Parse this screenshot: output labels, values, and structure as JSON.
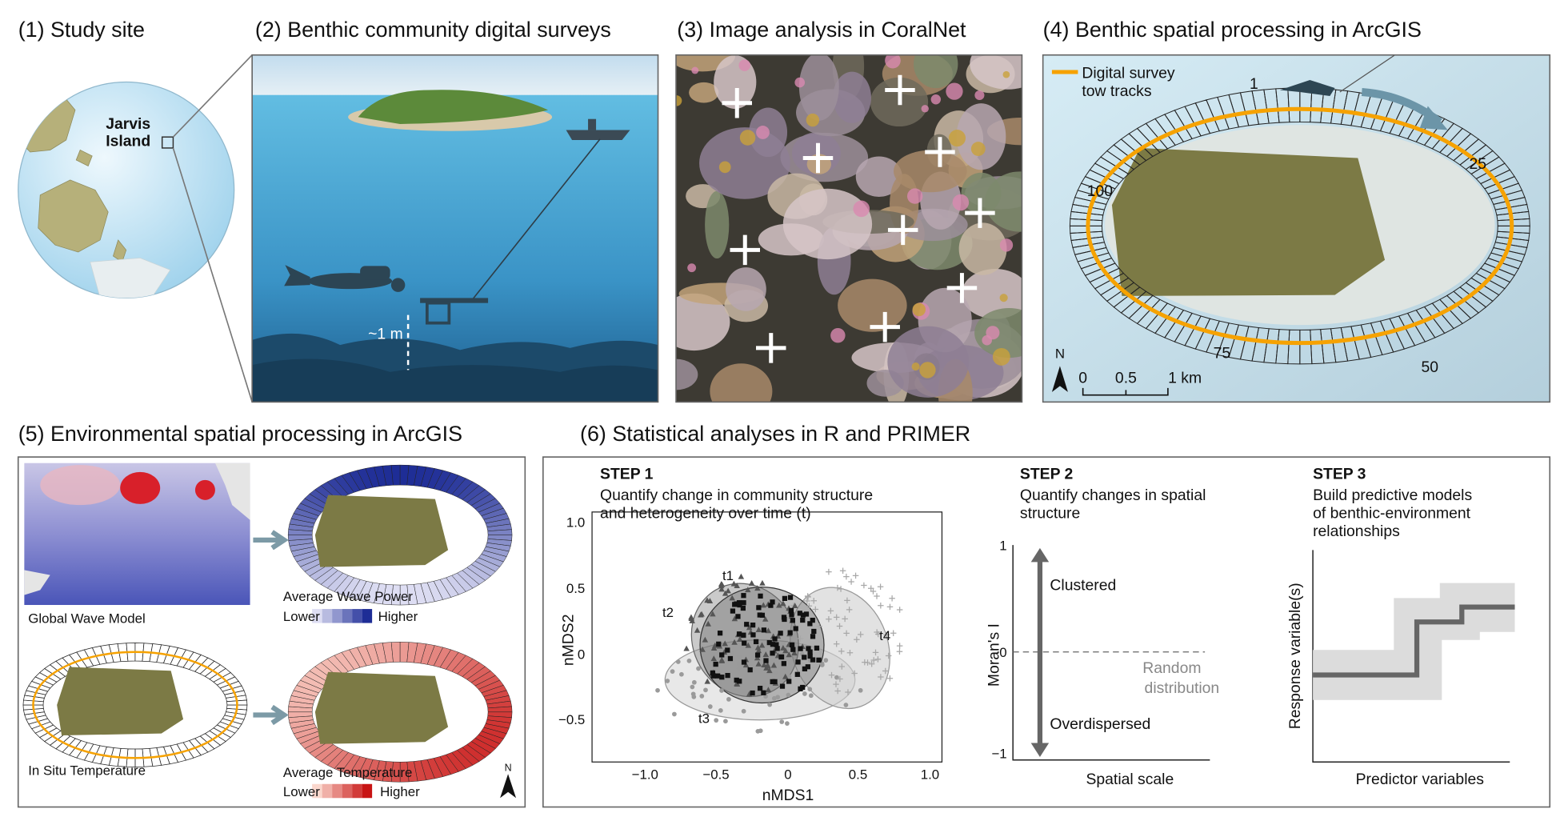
{
  "panel1": {
    "title": "(1) Study site",
    "label": [
      "Jarvis",
      "Island"
    ]
  },
  "panel2": {
    "title": "(2) Benthic community digital surveys",
    "depth_label": "~1 m"
  },
  "panel3": {
    "title": "(3) Image analysis in CoralNet"
  },
  "panel4": {
    "title": "(4) Benthic spatial processing in ArcGIS",
    "legend": [
      "Digital survey",
      "tow tracks"
    ],
    "segment_labels": [
      "1",
      "25",
      "50",
      "75",
      "100"
    ],
    "north": "N",
    "scale_labels": [
      "0",
      "0.5",
      "1 km"
    ]
  },
  "panel5": {
    "title": "(5) Environmental spatial processing in ArcGIS",
    "wave_model": "Global Wave Model",
    "wave_power": {
      "title": "Average Wave Power",
      "low": "Lower",
      "high": "Higher"
    },
    "in_situ": "In Situ Temperature",
    "temperature": {
      "title": "Average Temperature",
      "low": "Lower",
      "high": "Higher"
    },
    "north": "N"
  },
  "panel6": {
    "title": "(6) Statistical analyses in R and PRIMER",
    "step1": {
      "heading": "STEP 1",
      "description": [
        "Quantify change in community structure",
        "and heterogeneity over time (t)"
      ],
      "x_label": "nMDS1",
      "y_label": "nMDS2",
      "x_ticks": [
        "−1.0",
        "−0.5",
        "0",
        "0.5",
        "1.0"
      ],
      "y_ticks": [
        "1.0",
        "0.5",
        "0",
        "−0.5"
      ],
      "groups": [
        "t1",
        "t2",
        "t3",
        "t4"
      ]
    },
    "step2": {
      "heading": "STEP 2",
      "description": [
        "Quantify changes in spatial",
        "structure"
      ],
      "y_label": "Moran's I",
      "y_ticks": [
        "1",
        "0",
        "−1"
      ],
      "x_label": "Spatial scale",
      "clustered": "Clustered",
      "random": [
        "Random",
        "distribution"
      ],
      "overdispersed": "Overdispersed"
    },
    "step3": {
      "heading": "STEP 3",
      "description": [
        "Build predictive models",
        "of benthic-environment",
        "relationships"
      ],
      "y_label": "Response variable(s)",
      "x_label": "Predictor variables"
    }
  }
}
